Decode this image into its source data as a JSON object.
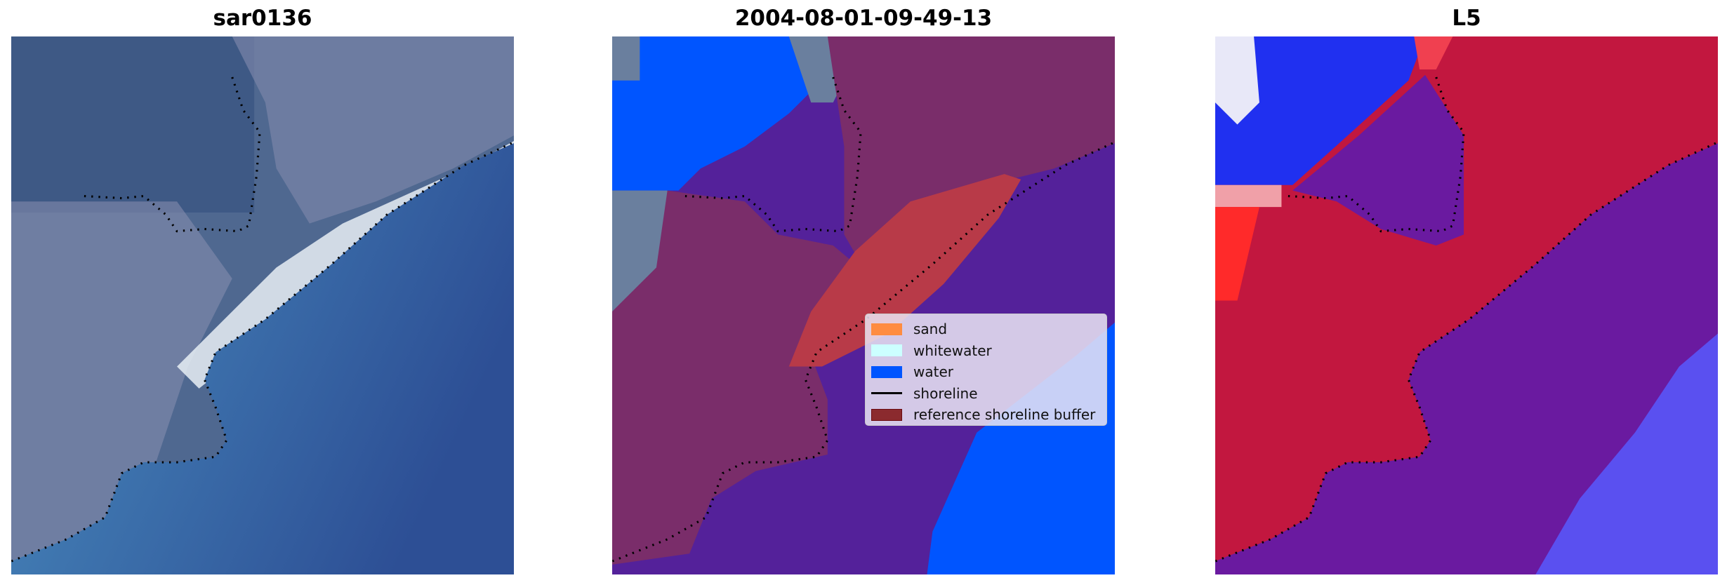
{
  "panels": [
    {
      "title": "sar0136"
    },
    {
      "title": "2004-08-01-09-49-13"
    },
    {
      "title": "L5"
    }
  ],
  "legend": {
    "items": [
      {
        "label": "sand",
        "color": "#ff8c40",
        "kind": "patch"
      },
      {
        "label": "whitewater",
        "color": "#ccffff",
        "kind": "patch"
      },
      {
        "label": "water",
        "color": "#0055ff",
        "kind": "patch"
      },
      {
        "label": "shoreline",
        "color": "#000000",
        "kind": "line"
      },
      {
        "label": "reference shoreline buffer",
        "color": "#8b2a2e",
        "kind": "patch"
      }
    ]
  }
}
